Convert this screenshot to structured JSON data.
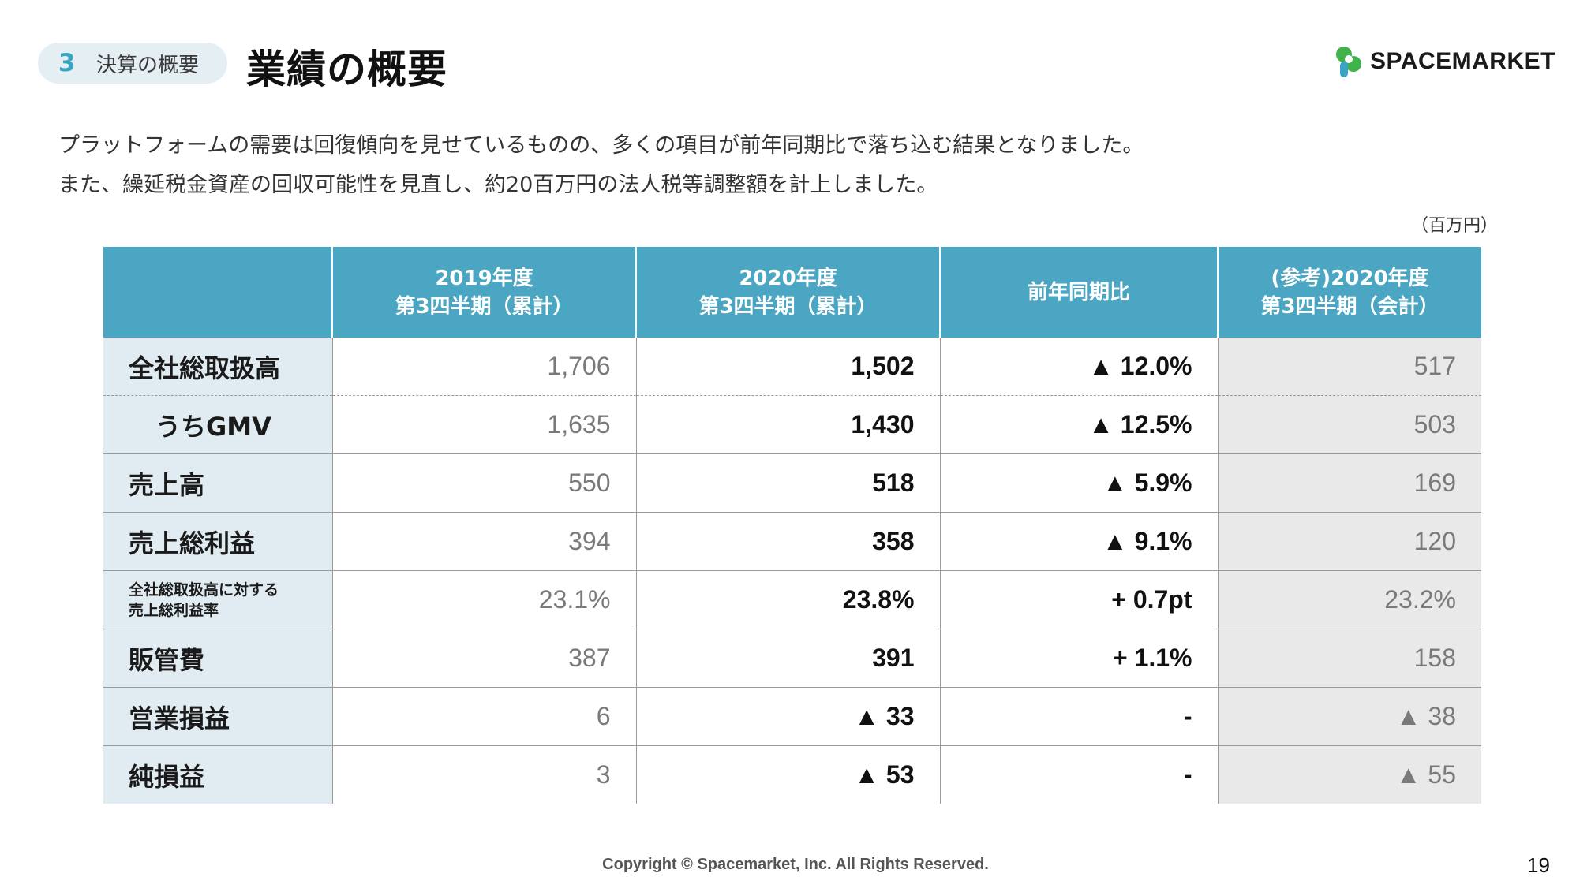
{
  "header": {
    "section_number": "3",
    "section_label": "決算の概要",
    "title": "業績の概要",
    "logo_text": "SPACEMARKET",
    "brand_colors": {
      "green": "#3fb24a",
      "teal": "#3aa5c3"
    }
  },
  "intro": [
    "プラットフォームの需要は回復傾向を見せているものの、多くの項目が前年同期比で落ち込む結果となりました。",
    "また、繰延税金資産の回収可能性を見直し、約20百万円の法人税等調整額を計上しました。"
  ],
  "unit": "（百万円）",
  "table": {
    "headers": [
      [
        "",
        ""
      ],
      [
        "2019年度",
        "第3四半期（累計）"
      ],
      [
        "2020年度",
        "第3四半期（累計）"
      ],
      [
        "前年同期比",
        ""
      ],
      [
        "(参考)2020年度",
        "第3四半期（会計）"
      ]
    ],
    "rows": [
      {
        "label": "全社総取扱高",
        "label2": "",
        "v2019": "1,706",
        "v2020": "1,502",
        "yoy": "▲ 12.0%",
        "ref": "517"
      },
      {
        "label": "うちGMV",
        "label2": "",
        "v2019": "1,635",
        "v2020": "1,430",
        "yoy": "▲ 12.5%",
        "ref": "503"
      },
      {
        "label": "売上高",
        "label2": "",
        "v2019": "550",
        "v2020": "518",
        "yoy": "▲ 5.9%",
        "ref": "169"
      },
      {
        "label": "売上総利益",
        "label2": "",
        "v2019": "394",
        "v2020": "358",
        "yoy": "▲ 9.1%",
        "ref": "120"
      },
      {
        "label": "全社総取扱高に対する",
        "label2": "売上総利益率",
        "v2019": "23.1%",
        "v2020": "23.8%",
        "yoy": "+ 0.7pt",
        "ref": "23.2%"
      },
      {
        "label": "販管費",
        "label2": "",
        "v2019": "387",
        "v2020": "391",
        "yoy": "+ 1.1%",
        "ref": "158"
      },
      {
        "label": "営業損益",
        "label2": "",
        "v2019": "6",
        "v2020": "▲ 33",
        "yoy": "-",
        "ref": "▲ 38"
      },
      {
        "label": "純損益",
        "label2": "",
        "v2019": "3",
        "v2020": "▲ 53",
        "yoy": "-",
        "ref": "▲ 55"
      }
    ]
  },
  "footer": {
    "copyright": "Copyright © Spacemarket, Inc. All Rights Reserved.",
    "page_number": "19"
  }
}
